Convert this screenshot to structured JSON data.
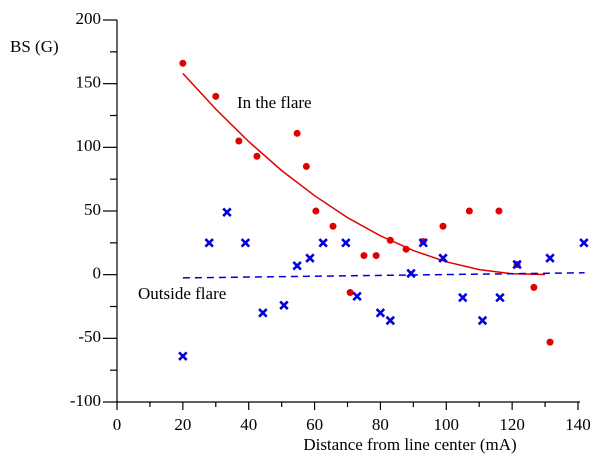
{
  "chart_data": {
    "type": "scatter",
    "x_label": "Distance from line center (mA)",
    "y_label": "BS (G)",
    "xlim": [
      0,
      140
    ],
    "xticks": [
      0,
      20,
      40,
      60,
      80,
      100,
      120,
      140
    ],
    "xticks_minor": [
      10,
      30,
      50,
      70,
      90,
      110,
      130
    ],
    "ylim": [
      -100,
      200
    ],
    "yticks": [
      -100,
      -50,
      0,
      50,
      100,
      150,
      200
    ],
    "yticks_minor": [
      -75,
      -25,
      25,
      75,
      125,
      175
    ],
    "series": [
      {
        "name": "In the flare",
        "color": "#e00000",
        "marker": "dot",
        "x": [
          20,
          30,
          37,
          42.5,
          54.7,
          57.5,
          60.4,
          65.6,
          70.8,
          75,
          78.7,
          83,
          87.8,
          93,
          99,
          107,
          116,
          121.5,
          126.6,
          131.5
        ],
        "values": [
          166,
          140,
          105,
          93,
          111,
          85,
          50,
          38,
          -14,
          15,
          15,
          27,
          20,
          26,
          38,
          50,
          50,
          8,
          -10,
          -53
        ],
        "fit": {
          "style": "solid",
          "x": [
            20,
            30,
            40,
            50,
            60,
            70,
            80,
            90,
            100,
            110,
            120,
            130
          ],
          "values": [
            158,
            130,
            104.5,
            81.8,
            62,
            44.8,
            30.5,
            18.9,
            10.1,
            4,
            0.7,
            0.1
          ]
        }
      },
      {
        "name": "Outside flare",
        "color": "#0000dd",
        "marker": "cross",
        "x": [
          20,
          28,
          33.4,
          39,
          44.3,
          50.7,
          54.7,
          58.6,
          62.6,
          69.5,
          72.9,
          80,
          83,
          89.3,
          93,
          99,
          105,
          111,
          116.3,
          121.5,
          131.5,
          141.8
        ],
        "values": [
          -64,
          25,
          49,
          25,
          -30,
          -24,
          7,
          13,
          25,
          25,
          -17,
          -30,
          -36,
          1,
          25,
          13,
          -18,
          -36,
          -18,
          8,
          13,
          25
        ],
        "fit": {
          "style": "dashed",
          "x": [
            20,
            142
          ],
          "values": [
            -2.5,
            1.5
          ]
        }
      }
    ]
  }
}
